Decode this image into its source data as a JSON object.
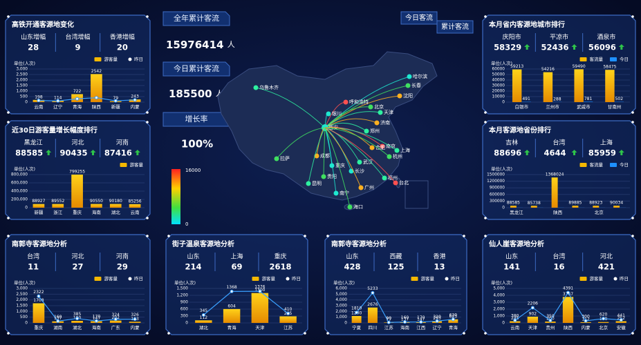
{
  "kpis": [
    {
      "label": "全年累计客流",
      "value": 15976414,
      "unit": "人"
    },
    {
      "label": "今日累计客流",
      "value": 185500,
      "unit": "人次"
    },
    {
      "label": "增长率",
      "value": "100%"
    }
  ],
  "map": {
    "buttons": [
      "今日客流",
      "累计客流"
    ],
    "scale": [
      {
        "value": 16000,
        "label": "16000"
      },
      {
        "value": 0,
        "label": "0"
      }
    ],
    "cities": [
      "乌鲁木齐",
      "哈尔滨",
      "长春",
      "沈阳",
      "呼和浩特",
      "北京",
      "天津",
      "银川",
      "济南",
      "郑州",
      "西安",
      "南京",
      "上海",
      "合肥",
      "杭州",
      "武汉",
      "长沙",
      "拉萨",
      "成都",
      "重庆",
      "贵阳",
      "昆明",
      "南宁",
      "广州",
      "福州",
      "台北",
      "海口"
    ]
  },
  "panels": [
    {
      "title": "高铁开通客源地变化",
      "arrows": false,
      "stats": [
        {
          "label": "山东增幅",
          "value": 28
        },
        {
          "label": "台湾增幅",
          "value": 9
        },
        {
          "label": "香港增幅",
          "value": 20
        }
      ],
      "chart": {
        "unit": "单位(人次)",
        "categories": [
          "云南",
          "辽宁",
          "青海",
          "陕西",
          "新疆",
          "内蒙"
        ],
        "ylim": [
          0,
          3000
        ],
        "yticks": [
          0,
          500,
          {
            "value": 1000,
            "label": "1,000"
          },
          {
            "value": 1500,
            "label": "1,500"
          },
          {
            "value": 2000,
            "label": "2,000"
          },
          {
            "value": 2500,
            "label": "2,500"
          },
          {
            "value": 3000,
            "label": "3,000"
          }
        ],
        "series": [
          {
            "name": "游客量",
            "type": "bar",
            "color": "#f5b800",
            "show_labels": true,
            "values": [
              198,
              114,
              722,
              2542,
              79,
              243
            ]
          },
          {
            "name": "昨日",
            "type": "line",
            "color": "#3aa0ff",
            "show_labels": false,
            "values": [
              150,
              110,
              300,
              400,
              120,
              200
            ]
          }
        ]
      }
    },
    {
      "title": "本月省内客源地城市排行",
      "arrows": true,
      "stats": [
        {
          "label": "庆阳市",
          "value": 58329
        },
        {
          "label": "平凉市",
          "value": 52436
        },
        {
          "label": "酒泉市",
          "value": 56096
        }
      ],
      "chart": {
        "unit": "单位(人次)",
        "categories": [
          "白银市",
          "兰州市",
          "武威市",
          "甘南州"
        ],
        "ylim": [
          0,
          60000
        ],
        "yticks": [
          0,
          10000,
          20000,
          30000,
          40000,
          50000,
          60000
        ],
        "series": [
          {
            "name": "客流量",
            "type": "bar",
            "color": "#f5b800",
            "show_labels": true,
            "values": [
              59213,
              54216,
              59490,
              58475
            ]
          },
          {
            "name": "今日",
            "type": "bar",
            "color": "#1e90ff",
            "show_labels": true,
            "values": [
              491,
              288,
              781,
              502
            ]
          }
        ]
      }
    },
    {
      "title": "近30日游客量增长幅度排行",
      "arrows": true,
      "stats": [
        {
          "label": "黑龙江",
          "value": 88585
        },
        {
          "label": "河北",
          "value": 90435
        },
        {
          "label": "河南",
          "value": 87416
        }
      ],
      "chart": {
        "unit": "单位(人次)",
        "categories": [
          "新疆",
          "浙江",
          "重庆",
          "海南",
          "湖北",
          "云南"
        ],
        "ylim": [
          0,
          800000
        ],
        "yticks": [
          0,
          {
            "value": 200000,
            "label": "200,000"
          },
          {
            "value": 400000,
            "label": "400,000"
          },
          {
            "value": 600000,
            "label": "600,000"
          },
          {
            "value": 800000,
            "label": "800,000"
          }
        ],
        "series": [
          {
            "name": "游客量",
            "type": "bar",
            "color": "#f5b800",
            "show_labels": true,
            "values": [
              88927,
              89552,
              799255,
              90550,
              90180,
              85256
            ]
          }
        ]
      }
    },
    {
      "title": "本月客源地省份排行",
      "arrows": true,
      "stats": [
        {
          "label": "吉林",
          "value": 88696
        },
        {
          "label": "台湾",
          "value": 4644
        },
        {
          "label": "上海",
          "value": 85959
        }
      ],
      "chart": {
        "unit": "单位(人次)",
        "categories": [
          "黑龙江",
          null,
          "陕西",
          null,
          "北京",
          null
        ],
        "ylim": [
          0,
          1500000
        ],
        "yticks": [
          0,
          300000,
          600000,
          900000,
          1200000,
          1500000
        ],
        "series": [
          {
            "name": "客流量",
            "type": "bar",
            "color": "#f5b800",
            "show_labels": true,
            "values": [
              88585,
              85738,
              1368024,
              89885,
              88923,
              90034
            ]
          },
          {
            "name": "今日",
            "type": "bar",
            "color": "#1e90ff",
            "show_labels": false,
            "values": [
              4101,
              3901,
              4309,
              4211,
              3226,
              4105
            ]
          }
        ]
      }
    },
    {
      "title": "南郭寺客源地分析",
      "arrows": false,
      "stats": [
        {
          "label": "台湾",
          "value": 11
        },
        {
          "label": "河北",
          "value": 27
        },
        {
          "label": "河南",
          "value": 29
        }
      ],
      "chart": {
        "unit": "单位(人次)",
        "categories": [
          "重庆",
          "湖南",
          "湖北",
          "海南",
          "广东",
          "内蒙"
        ],
        "ylim": [
          0,
          3000
        ],
        "yticks": [
          0,
          500,
          {
            "value": 1000,
            "label": "1,000"
          },
          {
            "value": 1500,
            "label": "1,500"
          },
          {
            "value": 2000,
            "label": "2,000"
          },
          {
            "value": 2500,
            "label": "2,500"
          },
          {
            "value": 3000,
            "label": "3,000"
          }
        ],
        "series": [
          {
            "name": "游客量",
            "type": "bar",
            "color": "#f5b800",
            "show_labels": true,
            "values": [
              1708,
              137,
              180,
              147,
              202,
              103
            ]
          },
          {
            "name": "昨日",
            "type": "line",
            "color": "#3aa0ff",
            "show_labels": true,
            "values": [
              2322,
              160,
              385,
              170,
              324,
              326
            ]
          }
        ]
      }
    },
    {
      "title": "街子温泉客源地分析",
      "arrows": false,
      "stats": [
        {
          "label": "山东",
          "value": 214
        },
        {
          "label": "上海",
          "value": 69
        },
        {
          "label": "重庆",
          "value": 2618
        }
      ],
      "chart": {
        "unit": "单位(人次)",
        "categories": [
          "湖北",
          "青海",
          "天津",
          "江苏"
        ],
        "ylim": [
          0,
          1500
        ],
        "yticks": [
          0,
          300,
          600,
          900,
          {
            "value": 1200,
            "label": "1,200"
          },
          {
            "value": 1500,
            "label": "1,500"
          }
        ],
        "series": [
          {
            "name": "游客量",
            "type": "bar",
            "color": "#f5b800",
            "show_labels": true,
            "values": [
              112,
              604,
              1300,
              285
            ]
          },
          {
            "name": "昨日",
            "type": "line",
            "color": "#3aa0ff",
            "show_labels": true,
            "values": [
              345,
              1368,
              1376,
              410
            ]
          }
        ]
      }
    },
    {
      "title": "南郭寺客源地分析",
      "arrows": false,
      "stats": [
        {
          "label": "山东",
          "value": 428
        },
        {
          "label": "西藏",
          "value": 125
        },
        {
          "label": "香港",
          "value": 13
        }
      ],
      "chart": {
        "unit": "单位(人次)",
        "categories": [
          "宁夏",
          "四川",
          "江苏",
          "海南",
          "江西",
          "辽宁",
          "青海"
        ],
        "ylim": [
          0,
          6000
        ],
        "yticks": [
          0,
          {
            "value": 1000,
            "label": "1,000"
          },
          {
            "value": 2000,
            "label": "2,000"
          },
          {
            "value": 3000,
            "label": "3,000"
          },
          {
            "value": 4000,
            "label": "4,000"
          },
          {
            "value": 5000,
            "label": "5,000"
          },
          {
            "value": 6000,
            "label": "6,000"
          }
        ],
        "series": [
          {
            "name": "游客量",
            "type": "bar",
            "color": "#f5b800",
            "show_labels": true,
            "values": [
              1200,
              2676,
              77,
              137,
              147,
              293,
              623
            ]
          },
          {
            "name": "昨日",
            "type": "line",
            "color": "#3aa0ff",
            "show_labels": true,
            "values": [
              1810,
              5233,
              90,
              160,
              170,
              320,
              620
            ]
          }
        ]
      }
    },
    {
      "title": "仙人崖客源地分析",
      "arrows": false,
      "stats": [
        {
          "label": "山东",
          "value": 141
        },
        {
          "label": "台湾",
          "value": 16
        },
        {
          "label": "河北",
          "value": 421
        }
      ],
      "chart": {
        "unit": "单位(人次)",
        "categories": [
          "云南",
          "天津",
          "贵州",
          "陕西",
          "内蒙",
          "北京",
          "安徽"
        ],
        "ylim": [
          0,
          5000
        ],
        "yticks": [
          0,
          {
            "value": 1000,
            "label": "1,000"
          },
          {
            "value": 2000,
            "label": "2,000"
          },
          {
            "value": 3000,
            "label": "3,000"
          },
          {
            "value": 4000,
            "label": "4,000"
          },
          {
            "value": 5000,
            "label": "5,000"
          }
        ],
        "series": [
          {
            "name": "游客量",
            "type": "bar",
            "color": "#f5b800",
            "show_labels": true,
            "values": [
              245,
              902,
              200,
              3767,
              112,
              128,
              252
            ]
          },
          {
            "name": "昨日",
            "type": "line",
            "color": "#3aa0ff",
            "show_labels": true,
            "values": [
              380,
              2206,
              350,
              4391,
              300,
              620,
              441
            ]
          }
        ]
      }
    }
  ]
}
